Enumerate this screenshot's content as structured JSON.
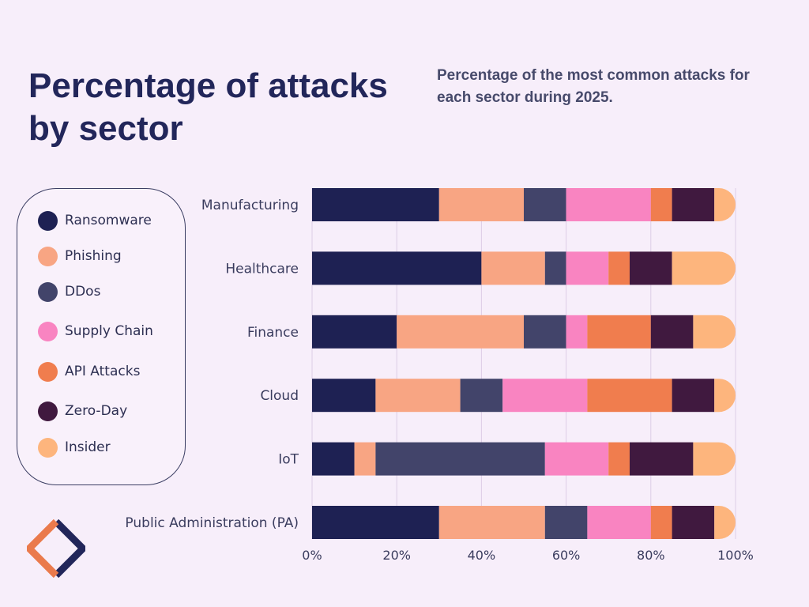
{
  "header": {
    "title": "Percentage of attacks by sector",
    "subtitle": "Percentage of the most common attacks for each sector during 2025."
  },
  "legend": [
    {
      "label": "Ransomware",
      "color": "#1e2153"
    },
    {
      "label": "Phishing",
      "color": "#f8a583"
    },
    {
      "label": "DDos",
      "color": "#42446a"
    },
    {
      "label": "Supply Chain",
      "color": "#f984c1"
    },
    {
      "label": "API Attacks",
      "color": "#f07d4e"
    },
    {
      "label": "Zero-Day",
      "color": "#40193f"
    },
    {
      "label": "Insider",
      "color": "#fdb57d"
    }
  ],
  "logo": {
    "icon": "diamond-logo-icon",
    "colors": [
      "#22265a",
      "#ea7a4c"
    ]
  },
  "chart_data": {
    "type": "bar",
    "orientation": "horizontal",
    "stacked": true,
    "title": "Percentage of attacks by sector",
    "subtitle": "Percentage of the most common attacks for each sector during 2025.",
    "categories": [
      "Manufacturing",
      "Healthcare",
      "Finance",
      "Cloud",
      "IoT",
      "Public Administration (PA)"
    ],
    "series": [
      {
        "name": "Ransomware",
        "color": "#1e2153",
        "values": [
          30,
          40,
          20,
          15,
          10,
          30
        ]
      },
      {
        "name": "Phishing",
        "color": "#f8a583",
        "values": [
          20,
          15,
          30,
          20,
          5,
          25
        ]
      },
      {
        "name": "DDos",
        "color": "#42446a",
        "values": [
          10,
          5,
          10,
          10,
          40,
          10
        ]
      },
      {
        "name": "Supply Chain",
        "color": "#f984c1",
        "values": [
          20,
          10,
          5,
          20,
          15,
          15
        ]
      },
      {
        "name": "API Attacks",
        "color": "#f07d4e",
        "values": [
          5,
          5,
          15,
          20,
          5,
          5
        ]
      },
      {
        "name": "Zero-Day",
        "color": "#40193f",
        "values": [
          10,
          10,
          10,
          10,
          15,
          10
        ]
      },
      {
        "name": "Insider",
        "color": "#fdb57d",
        "values": [
          5,
          15,
          10,
          5,
          10,
          5
        ]
      }
    ],
    "xlim": [
      0,
      100
    ],
    "xticks": [
      0,
      20,
      40,
      60,
      80,
      100
    ],
    "xtick_labels": [
      "0%",
      "20%",
      "40%",
      "60%",
      "80%",
      "100%"
    ],
    "grid": true,
    "legend_position": "left"
  }
}
